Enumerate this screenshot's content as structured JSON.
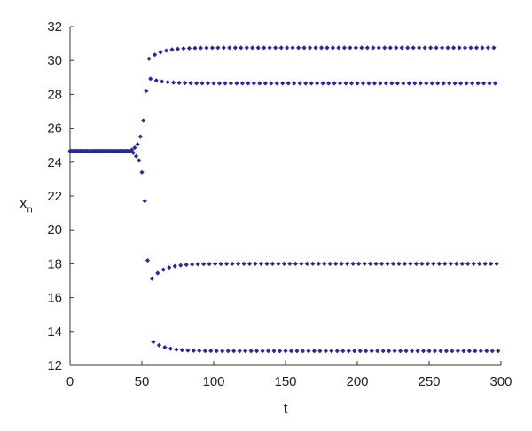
{
  "chart_data": {
    "type": "scatter",
    "title": "",
    "xlabel": "t",
    "ylabel": "x",
    "ylabel_subscript": "n",
    "xlim": [
      0,
      300
    ],
    "ylim": [
      12,
      32
    ],
    "xticks": [
      0,
      50,
      100,
      150,
      200,
      250,
      300
    ],
    "yticks": [
      12,
      14,
      16,
      18,
      20,
      22,
      24,
      26,
      28,
      30,
      32
    ],
    "grid": false,
    "legend": "none",
    "marker_color": "#2b2b8c",
    "marker": "diamond",
    "regimes": {
      "fixed_point": {
        "t_start": 0,
        "t_end": 42,
        "step": 1,
        "value": 24.65
      },
      "divergence": [
        [
          43,
          24.72
        ],
        [
          44,
          24.55
        ],
        [
          45,
          24.85
        ],
        [
          46,
          24.35
        ],
        [
          47,
          25.05
        ],
        [
          48,
          24.1
        ],
        [
          49,
          25.5
        ],
        [
          50,
          23.4
        ],
        [
          51,
          26.45
        ],
        [
          52,
          21.7
        ],
        [
          53,
          28.2
        ],
        [
          54,
          18.2
        ]
      ],
      "period4_start": 55,
      "period4_step": 4,
      "t_end": 298,
      "branches": [
        {
          "name": "branch-1",
          "start": 30.1,
          "limit": 30.75,
          "approach": "rise"
        },
        {
          "name": "branch-2",
          "start": 28.95,
          "limit": 28.65,
          "approach": "fall"
        },
        {
          "name": "branch-3",
          "start": 16.9,
          "limit": 18.0,
          "approach": "rise"
        },
        {
          "name": "branch-4",
          "start": 13.6,
          "limit": 12.85,
          "approach": "fall"
        }
      ]
    }
  }
}
